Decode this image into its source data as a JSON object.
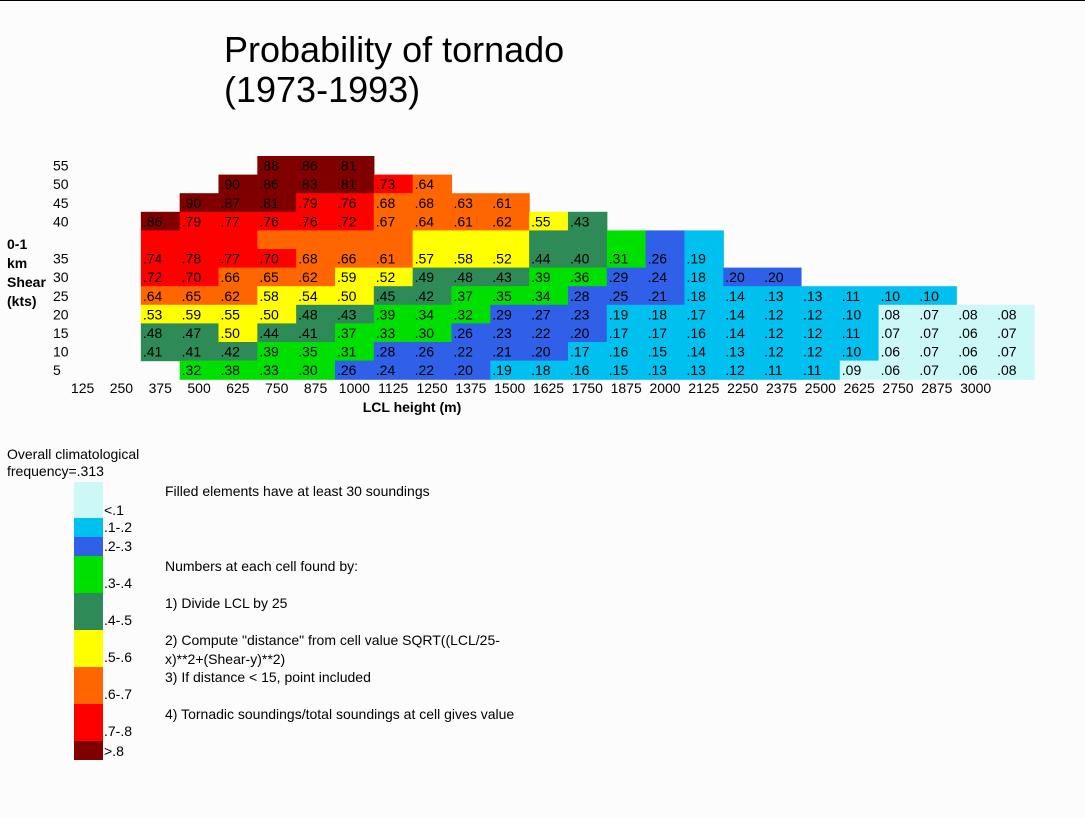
{
  "chart_data": {
    "type": "heatmap",
    "title": [
      "Probability of tornado",
      "(1973-1993)"
    ],
    "xlabel": "LCL height (m)",
    "ylabel": [
      "0-1",
      "km",
      "Shear",
      "(kts)"
    ],
    "x_ticks": [
      "125",
      "250",
      "375",
      "500",
      "625",
      "750",
      "875",
      "1000",
      "1125",
      "1250",
      "1375",
      "1500",
      "1625",
      "1750",
      "1875",
      "2000",
      "2125",
      "2250",
      "2375",
      "2500",
      "2625",
      "2750",
      "2875",
      "3000"
    ],
    "y_ticks": [
      "55",
      "50",
      "45",
      "40",
      "35",
      "30",
      "25",
      "20",
      "15",
      "10",
      "5"
    ],
    "rows": [
      {
        "shear": 55,
        "start": 5,
        "cells": [
          ".88",
          ".86",
          ".81"
        ]
      },
      {
        "shear": 50,
        "start": 4,
        "cells": [
          ".90",
          ".86",
          ".83",
          ".81",
          ".73",
          ".64"
        ]
      },
      {
        "shear": 45,
        "start": 3,
        "cells": [
          ".90",
          ".87",
          ".81",
          ".79",
          ".76",
          ".68",
          ".68",
          ".63",
          ".61"
        ]
      },
      {
        "shear": 40,
        "start": 2,
        "cells": [
          ".86",
          ".79",
          ".77",
          ".76",
          ".76",
          ".72",
          ".67",
          ".64",
          ".61",
          ".62",
          ".55",
          ".43"
        ]
      },
      {
        "shear": null,
        "start": 2,
        "cells": [
          "",
          "",
          "",
          "",
          "",
          "",
          "",
          "",
          "",
          "",
          "",
          "",
          "",
          "",
          ""
        ],
        "bands": [
          ".7-.8",
          ".7-.8",
          ".7-.8",
          ".6-.7",
          ".6-.7",
          ".6-.7",
          ".6-.7",
          ".5-.6",
          ".5-.6",
          ".5-.6",
          ".4-.5",
          ".4-.5",
          ".3-.4",
          ".2-.3",
          ".1-.2"
        ]
      },
      {
        "shear": 35,
        "start": 2,
        "cells": [
          ".74",
          ".78",
          ".77",
          ".70",
          ".68",
          ".66",
          ".61",
          ".57",
          ".58",
          ".52",
          ".44",
          ".40",
          ".31",
          ".26",
          ".19"
        ]
      },
      {
        "shear": 30,
        "start": 2,
        "cells": [
          ".72",
          ".70",
          ".66",
          ".65",
          ".62",
          ".59",
          ".52",
          ".49",
          ".48",
          ".43",
          ".39",
          ".36",
          ".29",
          ".24",
          ".18",
          ".20",
          ".20"
        ]
      },
      {
        "shear": 25,
        "start": 2,
        "cells": [
          ".64",
          ".65",
          ".62",
          ".58",
          ".54",
          ".50",
          ".45",
          ".42",
          ".37",
          ".35",
          ".34",
          ".28",
          ".25",
          ".21",
          ".18",
          ".14",
          ".13",
          ".13",
          ".11",
          ".10",
          ".10"
        ]
      },
      {
        "shear": 20,
        "start": 2,
        "cells": [
          ".53",
          ".59",
          ".55",
          ".50",
          ".48",
          ".43",
          ".39",
          ".34",
          ".32",
          ".29",
          ".27",
          ".23",
          ".19",
          ".18",
          ".17",
          ".14",
          ".12",
          ".12",
          ".10",
          ".08",
          ".07",
          ".08",
          ".08"
        ]
      },
      {
        "shear": 15,
        "start": 2,
        "cells": [
          ".48",
          ".47",
          ".50",
          ".44",
          ".41",
          ".37",
          ".33",
          ".30",
          ".26",
          ".23",
          ".22",
          ".20",
          ".17",
          ".17",
          ".16",
          ".14",
          ".12",
          ".12",
          ".11",
          ".07",
          ".07",
          ".06",
          ".07"
        ]
      },
      {
        "shear": 10,
        "start": 2,
        "cells": [
          ".41",
          ".41",
          ".42",
          ".39",
          ".35",
          ".31",
          ".28",
          ".26",
          ".22",
          ".21",
          ".20",
          ".17",
          ".16",
          ".15",
          ".14",
          ".13",
          ".12",
          ".12",
          ".10",
          ".06",
          ".07",
          ".06",
          ".07"
        ]
      },
      {
        "shear": 5,
        "start": 3,
        "cells": [
          ".32",
          ".38",
          ".33",
          ".30",
          ".26",
          ".24",
          ".22",
          ".20",
          ".19",
          ".18",
          ".16",
          ".15",
          ".13",
          ".13",
          ".12",
          ".11",
          ".11",
          ".09",
          ".06",
          ".07",
          ".06",
          ".08"
        ]
      }
    ],
    "legend": [
      {
        "label": "<.1",
        "color": "#ccf8f8"
      },
      {
        "label": ".1-.2",
        "color": "#00c0f0"
      },
      {
        "label": ".2-.3",
        "color": "#3060e8"
      },
      {
        "label": ".3-.4",
        "color": "#00e000"
      },
      {
        "label": ".4-.5",
        "color": "#2e8b57"
      },
      {
        "label": ".5-.6",
        "color": "#ffff00"
      },
      {
        "label": ".6-.7",
        "color": "#ff6600"
      },
      {
        "label": ".7-.8",
        "color": "#ff0000"
      },
      {
        "label": ">.8",
        "color": "#800000"
      }
    ]
  },
  "climo_note": "Overall climatological frequency=.313",
  "notes": [
    "Filled elements have at least 30 soundings",
    "Numbers at each cell found by:",
    "1)  Divide LCL by 25",
    "2)  Compute \"distance\" from cell value SQRT((LCL/25-x)**2+(Shear-y)**2)",
    "3)  If distance < 15, point included",
    "4)  Tornadic soundings/total soundings at cell gives value"
  ]
}
